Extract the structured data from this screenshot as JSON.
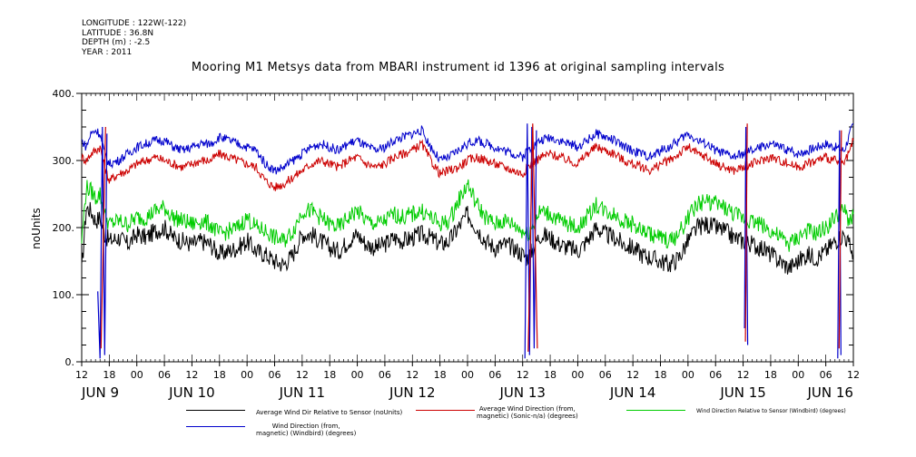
{
  "metadata": {
    "longitude": "LONGITUDE : 122W(-122)",
    "latitude": "LATITUDE : 36.8N",
    "depth": "DEPTH (m) : -2.5",
    "year": "YEAR : 2011"
  },
  "chart_data": {
    "type": "line",
    "title": "Mooring M1 Metsys data from MBARI instrument id 1396 at original sampling intervals",
    "ylabel": "noUnits",
    "xlabel": "",
    "ylim": [
      0,
      400
    ],
    "yticks": [
      0,
      100,
      200,
      300,
      400
    ],
    "ytick_labels": [
      "0.",
      "100.",
      "200.",
      "300.",
      "400."
    ],
    "xlim_hours": [
      0,
      168
    ],
    "xtick_labels": [
      "12",
      "18",
      "00",
      "06",
      "12",
      "18",
      "00",
      "06",
      "12",
      "18",
      "00",
      "06",
      "12",
      "18",
      "00",
      "06",
      "12",
      "18",
      "00",
      "06",
      "12",
      "18",
      "00",
      "06",
      "12",
      "18",
      "00",
      "06",
      "12"
    ],
    "date_labels": [
      "JUN  9",
      "JUN 10",
      "JUN 11",
      "JUN 12",
      "JUN 13",
      "JUN 14",
      "JUN 15",
      "JUN 16"
    ],
    "grid": false,
    "legend_position": "bottom",
    "series": [
      {
        "name": "Average Wind Dir Relative to Sensor (noUnits)",
        "color": "#000000",
        "x": [
          0,
          1,
          2,
          3,
          4,
          5,
          6,
          8,
          10,
          12,
          14,
          16,
          18,
          20,
          22,
          24,
          26,
          28,
          30,
          32,
          34,
          36,
          38,
          40,
          42,
          44,
          46,
          48,
          50,
          52,
          54,
          56,
          58,
          60,
          62,
          64,
          66,
          68,
          70,
          72,
          74,
          76,
          78,
          80,
          82,
          84,
          86,
          88,
          90,
          92,
          94,
          96,
          97,
          98,
          99,
          100,
          102,
          104,
          106,
          108,
          110,
          112,
          114,
          116,
          118,
          120,
          122,
          124,
          126,
          128,
          130,
          132,
          134,
          136,
          138,
          140,
          142,
          144,
          146,
          148,
          150,
          152,
          154,
          156,
          158,
          160,
          162,
          164,
          166,
          167,
          168
        ],
        "y": [
          135,
          230,
          225,
          210,
          215,
          190,
          180,
          185,
          175,
          190,
          185,
          195,
          200,
          185,
          180,
          175,
          180,
          175,
          160,
          165,
          170,
          180,
          165,
          160,
          150,
          145,
          160,
          190,
          190,
          180,
          170,
          165,
          180,
          190,
          175,
          170,
          175,
          185,
          180,
          185,
          190,
          185,
          175,
          180,
          200,
          220,
          200,
          180,
          170,
          175,
          170,
          160,
          155,
          165,
          180,
          190,
          185,
          175,
          170,
          165,
          180,
          200,
          190,
          185,
          175,
          170,
          160,
          155,
          150,
          145,
          155,
          180,
          200,
          205,
          200,
          195,
          185,
          180,
          175,
          170,
          160,
          150,
          140,
          150,
          160,
          155,
          165,
          180,
          190,
          175,
          160
        ]
      },
      {
        "name": "Average Wind Direction (from, magnetic) (Sonic-n/a) (degrees)",
        "color": "#cc0000",
        "x": [
          0,
          1,
          2,
          3,
          4,
          5,
          6,
          8,
          10,
          12,
          14,
          16,
          18,
          20,
          22,
          24,
          26,
          28,
          30,
          32,
          34,
          36,
          38,
          40,
          42,
          44,
          46,
          48,
          50,
          52,
          54,
          56,
          58,
          60,
          62,
          64,
          66,
          68,
          70,
          72,
          74,
          76,
          78,
          80,
          82,
          84,
          86,
          88,
          90,
          92,
          94,
          96,
          97,
          98,
          99,
          100,
          102,
          104,
          106,
          108,
          110,
          112,
          114,
          116,
          118,
          120,
          122,
          124,
          126,
          128,
          130,
          132,
          134,
          136,
          138,
          140,
          142,
          144,
          146,
          148,
          150,
          152,
          154,
          156,
          158,
          160,
          162,
          164,
          166,
          167,
          168
        ],
        "y": [
          305,
          300,
          310,
          315,
          320,
          290,
          270,
          280,
          285,
          295,
          300,
          305,
          300,
          295,
          290,
          295,
          300,
          300,
          310,
          305,
          300,
          295,
          290,
          270,
          260,
          265,
          275,
          285,
          295,
          300,
          295,
          290,
          300,
          305,
          295,
          290,
          295,
          305,
          310,
          315,
          325,
          300,
          280,
          285,
          290,
          300,
          305,
          300,
          295,
          290,
          285,
          280,
          290,
          295,
          300,
          305,
          310,
          305,
          300,
          295,
          310,
          320,
          315,
          310,
          300,
          295,
          290,
          285,
          295,
          300,
          310,
          320,
          310,
          305,
          295,
          290,
          285,
          290,
          295,
          300,
          305,
          300,
          295,
          290,
          295,
          300,
          305,
          300,
          295,
          310,
          330
        ]
      },
      {
        "name": "Wind Direction Relative to Sensor (Windbird) (degrees)",
        "color": "#00cc00",
        "x": [
          0,
          1,
          2,
          3,
          4,
          5,
          6,
          8,
          10,
          12,
          14,
          16,
          18,
          20,
          22,
          24,
          26,
          28,
          30,
          32,
          34,
          36,
          38,
          40,
          42,
          44,
          46,
          48,
          50,
          52,
          54,
          56,
          58,
          60,
          62,
          64,
          66,
          68,
          70,
          72,
          74,
          76,
          78,
          80,
          82,
          84,
          86,
          88,
          90,
          92,
          94,
          96,
          97,
          98,
          99,
          100,
          102,
          104,
          106,
          108,
          110,
          112,
          114,
          116,
          118,
          120,
          122,
          124,
          126,
          128,
          130,
          132,
          134,
          136,
          138,
          140,
          142,
          144,
          146,
          148,
          150,
          152,
          154,
          156,
          158,
          160,
          162,
          164,
          166,
          167,
          168
        ],
        "y": [
          180,
          260,
          255,
          245,
          250,
          220,
          205,
          210,
          205,
          215,
          215,
          225,
          230,
          215,
          210,
          205,
          210,
          205,
          190,
          195,
          200,
          215,
          200,
          195,
          185,
          180,
          195,
          225,
          225,
          215,
          205,
          200,
          215,
          225,
          210,
          205,
          210,
          220,
          215,
          220,
          225,
          215,
          205,
          210,
          240,
          265,
          235,
          215,
          205,
          210,
          205,
          195,
          190,
          200,
          215,
          225,
          220,
          210,
          205,
          200,
          215,
          235,
          225,
          220,
          210,
          205,
          195,
          190,
          185,
          180,
          190,
          215,
          235,
          240,
          235,
          230,
          220,
          215,
          210,
          205,
          195,
          185,
          175,
          185,
          195,
          190,
          200,
          215,
          225,
          210,
          220
        ]
      },
      {
        "name": "Wind Direction (from, magnetic) (Windbird) (degrees)",
        "color": "#0000cc",
        "x": [
          0,
          1,
          2,
          3,
          4,
          5,
          6,
          8,
          10,
          12,
          14,
          16,
          18,
          20,
          22,
          24,
          26,
          28,
          30,
          32,
          34,
          36,
          38,
          40,
          42,
          44,
          46,
          48,
          50,
          52,
          54,
          56,
          58,
          60,
          62,
          64,
          66,
          68,
          70,
          72,
          74,
          76,
          78,
          80,
          82,
          84,
          86,
          88,
          90,
          92,
          94,
          96,
          97,
          98,
          99,
          100,
          102,
          104,
          106,
          108,
          110,
          112,
          114,
          116,
          118,
          120,
          122,
          124,
          126,
          128,
          130,
          132,
          134,
          136,
          138,
          140,
          142,
          144,
          146,
          148,
          150,
          152,
          154,
          156,
          158,
          160,
          162,
          164,
          166,
          167,
          168
        ],
        "y": [
          330,
          320,
          340,
          345,
          340,
          310,
          295,
          300,
          310,
          320,
          325,
          330,
          330,
          320,
          315,
          320,
          325,
          325,
          335,
          330,
          325,
          320,
          315,
          295,
          285,
          290,
          300,
          310,
          320,
          325,
          320,
          315,
          325,
          330,
          320,
          315,
          320,
          330,
          335,
          340,
          345,
          320,
          300,
          305,
          315,
          325,
          330,
          325,
          320,
          315,
          310,
          305,
          315,
          320,
          325,
          330,
          335,
          330,
          325,
          320,
          330,
          340,
          335,
          330,
          320,
          315,
          310,
          305,
          315,
          320,
          330,
          340,
          330,
          325,
          315,
          310,
          305,
          310,
          315,
          320,
          325,
          320,
          315,
          310,
          315,
          320,
          325,
          320,
          315,
          335,
          355
        ]
      }
    ],
    "spikes": [
      {
        "series": 3,
        "x": [
          3.5,
          4,
          4.5,
          5,
          5.5
        ],
        "y": [
          105,
          5,
          350,
          10,
          340
        ]
      },
      {
        "series": 1,
        "x": [
          4.2,
          5.2
        ],
        "y": [
          20,
          350
        ]
      },
      {
        "series": 3,
        "x": [
          96.5,
          97,
          97.5,
          98,
          98.5,
          99
        ],
        "y": [
          5,
          355,
          10,
          350,
          20,
          345
        ]
      },
      {
        "series": 1,
        "x": [
          97.2,
          98.2,
          99.2
        ],
        "y": [
          15,
          355,
          20
        ]
      },
      {
        "series": 3,
        "x": [
          144.3,
          144.6,
          145
        ],
        "y": [
          50,
          350,
          25
        ]
      },
      {
        "series": 1,
        "x": [
          144.5,
          144.9
        ],
        "y": [
          30,
          355
        ]
      },
      {
        "series": 3,
        "x": [
          164.6,
          165,
          165.3
        ],
        "y": [
          5,
          345,
          10
        ]
      },
      {
        "series": 1,
        "x": [
          164.9,
          165.4
        ],
        "y": [
          20,
          345
        ]
      }
    ]
  },
  "legend": {
    "black_label": "Average Wind Dir Relative to Sensor (noUnits)",
    "red_label": "Average Wind Direction (from,\nmagnetic) (Sonic-n/a) (degrees)",
    "green_label": "Wind Direction Relative to Sensor (Windbird) (degrees)",
    "blue_label": "Wind Direction (from,\nmagnetic) (Windbird) (degrees)"
  }
}
